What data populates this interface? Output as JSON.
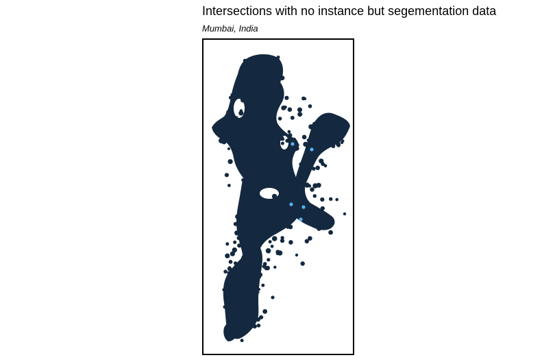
{
  "title": "Intersections with no instance but segementation data",
  "subtitle": "Mumbai, India",
  "colors": {
    "dense_points": "#14293f",
    "highlight_points": "#56b1f7",
    "frame": "#000000",
    "background": "#ffffff"
  }
}
